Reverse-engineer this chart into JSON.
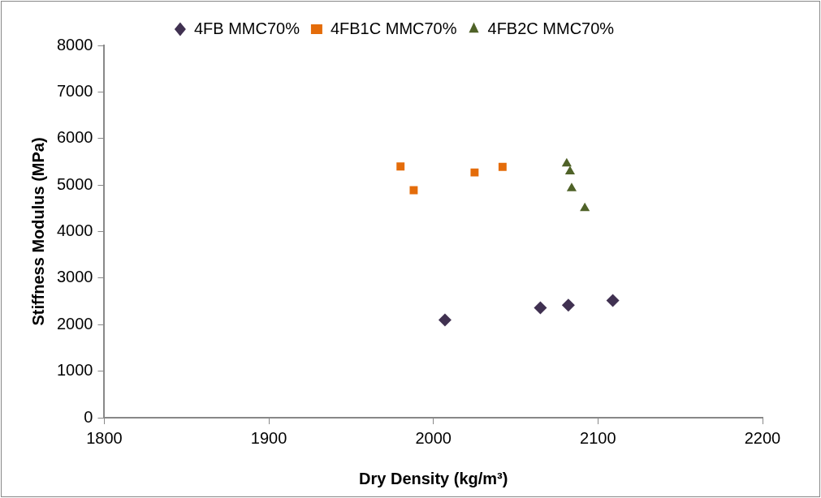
{
  "chart_data": {
    "type": "scatter",
    "xlabel": "Dry Density (kg/m³)",
    "ylabel": "Stiffness Modulus (MPa)",
    "xlim": [
      1800,
      2200
    ],
    "xticks": [
      1800,
      1900,
      2000,
      2100,
      2200
    ],
    "ylim": [
      0,
      8000
    ],
    "yticks": [
      0,
      1000,
      2000,
      3000,
      4000,
      5000,
      6000,
      7000,
      8000
    ],
    "grid": false,
    "legend": "top",
    "series": [
      {
        "name": "4FB MMC70%",
        "color": "#403151",
        "marker": "diamond",
        "x": [
          2007,
          2065,
          2082,
          2109
        ],
        "values": [
          2100,
          2360,
          2420,
          2520
        ]
      },
      {
        "name": "4FB1C MMC70%",
        "color": "#e46c0a",
        "marker": "square",
        "x": [
          1980,
          1988,
          2025,
          2042
        ],
        "values": [
          5400,
          4890,
          5270,
          5390
        ]
      },
      {
        "name": "4FB2C MMC70%",
        "color": "#4f6228",
        "marker": "triangle",
        "x": [
          2081,
          2083,
          2084,
          2092
        ],
        "values": [
          5460,
          5290,
          4930,
          4500
        ]
      }
    ]
  }
}
